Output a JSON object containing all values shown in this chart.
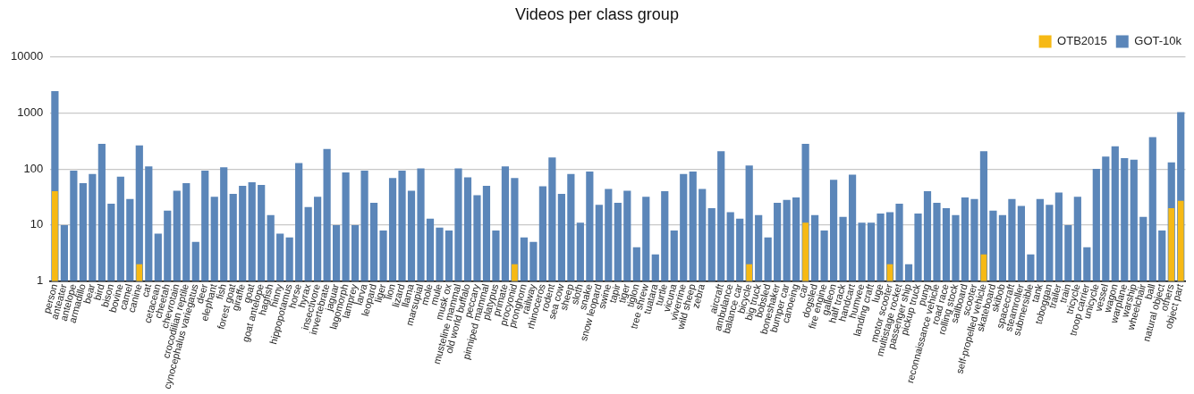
{
  "chart_data": {
    "type": "bar",
    "title": "Videos per class group",
    "log": true,
    "grid": "y",
    "legend": "top right",
    "ylim": [
      1,
      10000
    ],
    "yticks": [
      1,
      10,
      100,
      1000,
      10000
    ],
    "categories": [
      "person",
      "anteater",
      "antelope",
      "armadillo",
      "bear",
      "bird",
      "bison",
      "bovine",
      "camel",
      "canine",
      "cat",
      "cetacean",
      "cheetah",
      "chevrotain",
      "crocodilian reptile",
      "cynocephalus variegatus",
      "deer",
      "elephant",
      "fish",
      "forest goat",
      "giraffe",
      "goat",
      "goat antelope",
      "hagfish",
      "hinny",
      "hippopotamus",
      "horse",
      "hyrax",
      "insectivore",
      "invertebrate",
      "jaguar",
      "lagomorph",
      "lamprey",
      "larva",
      "leopard",
      "liger",
      "lion",
      "lizard",
      "llama",
      "marsupial",
      "mole",
      "mule",
      "musk ox",
      "musteline mammal",
      "old world buffalo",
      "peccary",
      "pinniped mammal",
      "platypus",
      "primate",
      "procyonid",
      "pronghorn",
      "railway",
      "rhinoceros",
      "rodent",
      "sea cow",
      "sheep",
      "sloth",
      "snake",
      "snow leopard",
      "swine",
      "tapir",
      "tiger",
      "tiglon",
      "tree shrew",
      "tuatara",
      "turtle",
      "vicuna",
      "viverrine",
      "wild sheep",
      "zebra",
      null,
      "aircraft",
      "ambulance",
      "balance car",
      "bicycle",
      "big truck",
      "bobsled",
      "boneshaker",
      "bumper car",
      "canoeing",
      "car",
      "dogsled",
      "fire engine",
      "galleon",
      "half track",
      "handcart",
      "humvee",
      "landing craft",
      "luge",
      "motor scooter",
      "multistage rocket",
      "passenger ship",
      "pickup truck",
      "pung",
      "reconnaissance vehicle",
      "road race",
      "rolling stock",
      "sailboard",
      "scooter",
      "self-propelled vehicle",
      "skateboard",
      "skibob",
      "spacecraft",
      "steamroller",
      "submersible",
      "tank",
      "toboggan",
      "trailer",
      "train",
      "tricycle",
      "troop carrier",
      "unicycle",
      "vessel",
      "wagon",
      "warplane",
      "warship",
      "wheelchair",
      "ball",
      "natural object",
      "others",
      "object part"
    ],
    "series": [
      {
        "name": "GOT-10k",
        "color": "#5b86b9",
        "values": [
          2450,
          10,
          93,
          56,
          81,
          280,
          24,
          73,
          29,
          262,
          111,
          7,
          18,
          41,
          56,
          5,
          93,
          32,
          107,
          36,
          50,
          58,
          52,
          15,
          7,
          6,
          127,
          21,
          32,
          228,
          10,
          87,
          10,
          93,
          25,
          8,
          69,
          93,
          41,
          102,
          13,
          9,
          8,
          102,
          71,
          34,
          50,
          8,
          111,
          69,
          6,
          5,
          49,
          161,
          36,
          81,
          11,
          90,
          23,
          44,
          25,
          41,
          4,
          32,
          3,
          40,
          8,
          81,
          90,
          44,
          20,
          207,
          17,
          13,
          115,
          15,
          6,
          25,
          28,
          31,
          280,
          15,
          8,
          64,
          14,
          79,
          11,
          11,
          16,
          17,
          24,
          2,
          16,
          40,
          25,
          20,
          15,
          31,
          29,
          207,
          18,
          15,
          29,
          22,
          3,
          29,
          23,
          38,
          10,
          32,
          4,
          100,
          167,
          253,
          156,
          146,
          14,
          369,
          8,
          131,
          1035
        ]
      },
      {
        "name": "OTB2015",
        "color": "#f6b915",
        "values": [
          40,
          null,
          null,
          null,
          null,
          null,
          null,
          null,
          null,
          2,
          null,
          null,
          null,
          null,
          null,
          null,
          null,
          null,
          null,
          null,
          null,
          null,
          null,
          null,
          null,
          null,
          null,
          null,
          null,
          null,
          null,
          null,
          null,
          null,
          null,
          null,
          null,
          null,
          null,
          null,
          null,
          null,
          null,
          null,
          null,
          null,
          null,
          null,
          null,
          2,
          null,
          null,
          null,
          null,
          null,
          null,
          null,
          null,
          null,
          null,
          null,
          null,
          null,
          null,
          null,
          null,
          null,
          null,
          null,
          null,
          null,
          null,
          null,
          null,
          2,
          null,
          null,
          null,
          null,
          null,
          11,
          null,
          null,
          null,
          null,
          null,
          null,
          null,
          null,
          2,
          null,
          null,
          null,
          null,
          null,
          null,
          null,
          null,
          null,
          3,
          null,
          null,
          null,
          null,
          null,
          null,
          null,
          null,
          null,
          null,
          null,
          null,
          null,
          null,
          null,
          null,
          null,
          null,
          null,
          20,
          27
        ]
      }
    ]
  }
}
